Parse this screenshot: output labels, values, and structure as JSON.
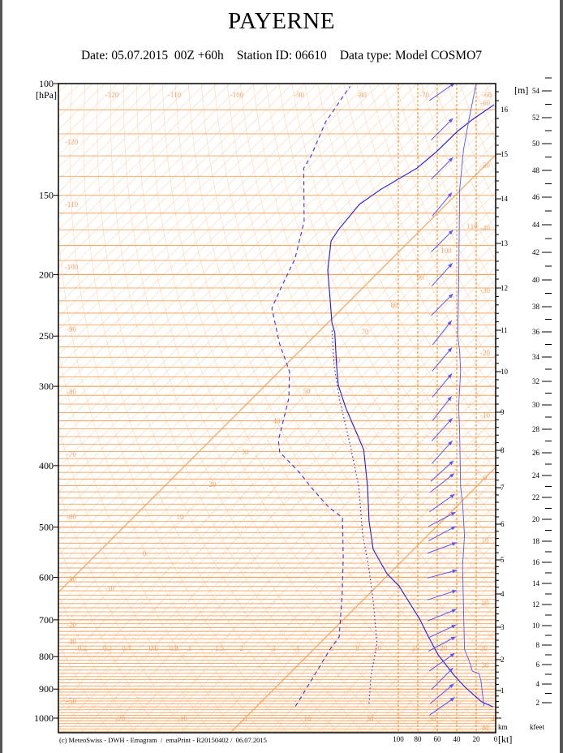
{
  "header": {
    "title": "PAYERNE",
    "date": "Date: 05.07.2015  00Z +60h",
    "station": "Station ID: 06610",
    "datatype": "Data type: Model COSMO7"
  },
  "footer": "(c) MeteoSwiss - DWH - Emagram  /  emaPrint - R20150402 /  06.07.2015",
  "colors": {
    "grid_orange": "#f7a35c",
    "grid_light": "#fbd5b8",
    "label_orange": "#f2a46a",
    "curve_blue": "#2222ee",
    "wind_blue": "#5555ff"
  },
  "chart_data": {
    "type": "line",
    "title": "PAYERNE",
    "yaxis": {
      "label": "[hPa]",
      "scale": "log",
      "range": [
        100,
        1050
      ],
      "ticks": [
        100,
        150,
        200,
        250,
        300,
        400,
        500,
        600,
        700,
        800,
        900,
        1000
      ]
    },
    "xaxis": {
      "ticks": [
        -20,
        -10,
        0,
        10,
        20,
        30,
        40
      ],
      "skewed_isotherms": true
    },
    "isotherm_labels_left": [
      -120,
      -110,
      -100,
      -90,
      -80,
      -70,
      -60,
      -50,
      -40
    ],
    "isotherm_labels_top": [
      -120,
      -110,
      -100,
      -90,
      -80,
      -70,
      -60
    ],
    "isotherm_labels_right": [
      -60,
      -50,
      -40,
      -30,
      -20,
      -10,
      0,
      10,
      20,
      30,
      40
    ],
    "dry_adiabat_labels": [
      110,
      100,
      90,
      80,
      70,
      60,
      50,
      40,
      30,
      20,
      10,
      0,
      -10,
      -20,
      -50
    ],
    "mixing_ratio_labels": [
      0.2,
      0.3,
      0.4,
      0.6,
      0.8,
      1,
      1.5,
      2,
      3,
      4,
      6,
      8,
      10,
      15,
      20,
      30
    ],
    "wind_axis": {
      "label": "[kt]",
      "ticks": [
        100,
        80,
        60,
        40,
        20,
        0
      ]
    },
    "height_km": {
      "label": "km",
      "ticks": [
        1,
        2,
        3,
        4,
        5,
        6,
        7,
        8,
        9,
        10,
        11,
        12,
        13,
        14,
        15,
        16
      ]
    },
    "height_kfeet": {
      "label": "kfeet",
      "unit_label": "[m]",
      "ticks": [
        2,
        4,
        6,
        8,
        10,
        12,
        14,
        16,
        18,
        20,
        22,
        24,
        26,
        28,
        30,
        32,
        34,
        36,
        38,
        40,
        42,
        44,
        46,
        48,
        50,
        52,
        54
      ]
    },
    "grid": true,
    "series": [
      {
        "style": "solid",
        "points": [
          [
            960,
            37.9
          ],
          [
            942,
            35.2
          ],
          [
            894,
            30.3
          ],
          [
            858,
            26.8
          ],
          [
            795,
            20.8
          ],
          [
            745,
            16.4
          ],
          [
            698,
            12.1
          ],
          [
            619,
            3.5
          ],
          [
            592,
            -0.4
          ],
          [
            542,
            -6.5
          ],
          [
            489,
            -11.7
          ],
          [
            432,
            -17.4
          ],
          [
            378,
            -23.9
          ],
          [
            362,
            -26.6
          ],
          [
            325,
            -33.4
          ],
          [
            299,
            -38.3
          ],
          [
            278,
            -41.8
          ],
          [
            247,
            -47.3
          ],
          [
            238,
            -49.4
          ],
          [
            212,
            -54.9
          ],
          [
            197,
            -58.4
          ],
          [
            177,
            -62.6
          ],
          [
            170,
            -63.2
          ],
          [
            155,
            -63.9
          ],
          [
            147,
            -62.9
          ],
          [
            136,
            -60.5
          ],
          [
            128,
            -60.0
          ],
          [
            119,
            -59.9
          ],
          [
            114,
            -59.4
          ],
          [
            108,
            -58.3
          ]
        ]
      },
      {
        "style": "dashed",
        "points": [
          [
            958,
            6.2
          ],
          [
            858,
            4.3
          ],
          [
            779,
            2.6
          ],
          [
            745,
            2.1
          ],
          [
            639,
            -4.2
          ],
          [
            558,
            -10.0
          ],
          [
            483,
            -16.5
          ],
          [
            465,
            -20.4
          ],
          [
            432,
            -26.5
          ],
          [
            411,
            -30.4
          ],
          [
            381,
            -37.0
          ],
          [
            365,
            -39.1
          ],
          [
            313,
            -44.2
          ],
          [
            284,
            -48.4
          ],
          [
            257,
            -54.4
          ],
          [
            226,
            -61.3
          ],
          [
            209,
            -63.2
          ],
          [
            189,
            -65.5
          ],
          [
            165,
            -70.0
          ],
          [
            136,
            -78.6
          ],
          [
            130,
            -79.4
          ],
          [
            115,
            -82.5
          ],
          [
            101,
            -84.3
          ]
        ]
      },
      {
        "style": "dotted",
        "points": [
          [
            948,
            17.5
          ],
          [
            858,
            13.4
          ],
          [
            763,
            9.2
          ],
          [
            658,
            2.1
          ],
          [
            580,
            -4.2
          ],
          [
            511,
            -10.8
          ],
          [
            432,
            -18.8
          ],
          [
            373,
            -26.6
          ],
          [
            315,
            -35.8
          ],
          [
            278,
            -42.2
          ],
          [
            245,
            -48.1
          ]
        ]
      }
    ],
    "wind_speed_profile_kt": [
      [
        958,
        12
      ],
      [
        876,
        15
      ],
      [
        851,
        17
      ],
      [
        843,
        24
      ],
      [
        814,
        27
      ],
      [
        779,
        32
      ],
      [
        672,
        33
      ],
      [
        575,
        34
      ],
      [
        516,
        32
      ],
      [
        458,
        34
      ],
      [
        432,
        36
      ],
      [
        355,
        37
      ],
      [
        322,
        38
      ],
      [
        284,
        36
      ],
      [
        264,
        37
      ],
      [
        249,
        39
      ],
      [
        207,
        38
      ],
      [
        147,
        37
      ],
      [
        127,
        33
      ],
      [
        113,
        27
      ],
      [
        100,
        20
      ]
    ],
    "wind_arrows": [
      {
        "p": 103,
        "dir": 235
      },
      {
        "p": 118,
        "dir": 225
      },
      {
        "p": 136,
        "dir": 225
      },
      {
        "p": 155,
        "dir": 220
      },
      {
        "p": 177,
        "dir": 225
      },
      {
        "p": 200,
        "dir": 222
      },
      {
        "p": 223,
        "dir": 225
      },
      {
        "p": 247,
        "dir": 218
      },
      {
        "p": 272,
        "dir": 220
      },
      {
        "p": 299,
        "dir": 220
      },
      {
        "p": 325,
        "dir": 218
      },
      {
        "p": 351,
        "dir": 222
      },
      {
        "p": 381,
        "dir": 222
      },
      {
        "p": 408,
        "dir": 228
      },
      {
        "p": 426,
        "dir": 232
      },
      {
        "p": 458,
        "dir": 235
      },
      {
        "p": 486,
        "dir": 242
      },
      {
        "p": 512,
        "dir": 242
      },
      {
        "p": 539,
        "dir": 250
      },
      {
        "p": 593,
        "dir": 255
      },
      {
        "p": 640,
        "dir": 252
      },
      {
        "p": 688,
        "dir": 248
      },
      {
        "p": 730,
        "dir": 245
      },
      {
        "p": 764,
        "dir": 242
      },
      {
        "p": 816,
        "dir": 235
      },
      {
        "p": 867,
        "dir": 225
      },
      {
        "p": 915,
        "dir": 230
      },
      {
        "p": 958,
        "dir": 235
      }
    ]
  }
}
